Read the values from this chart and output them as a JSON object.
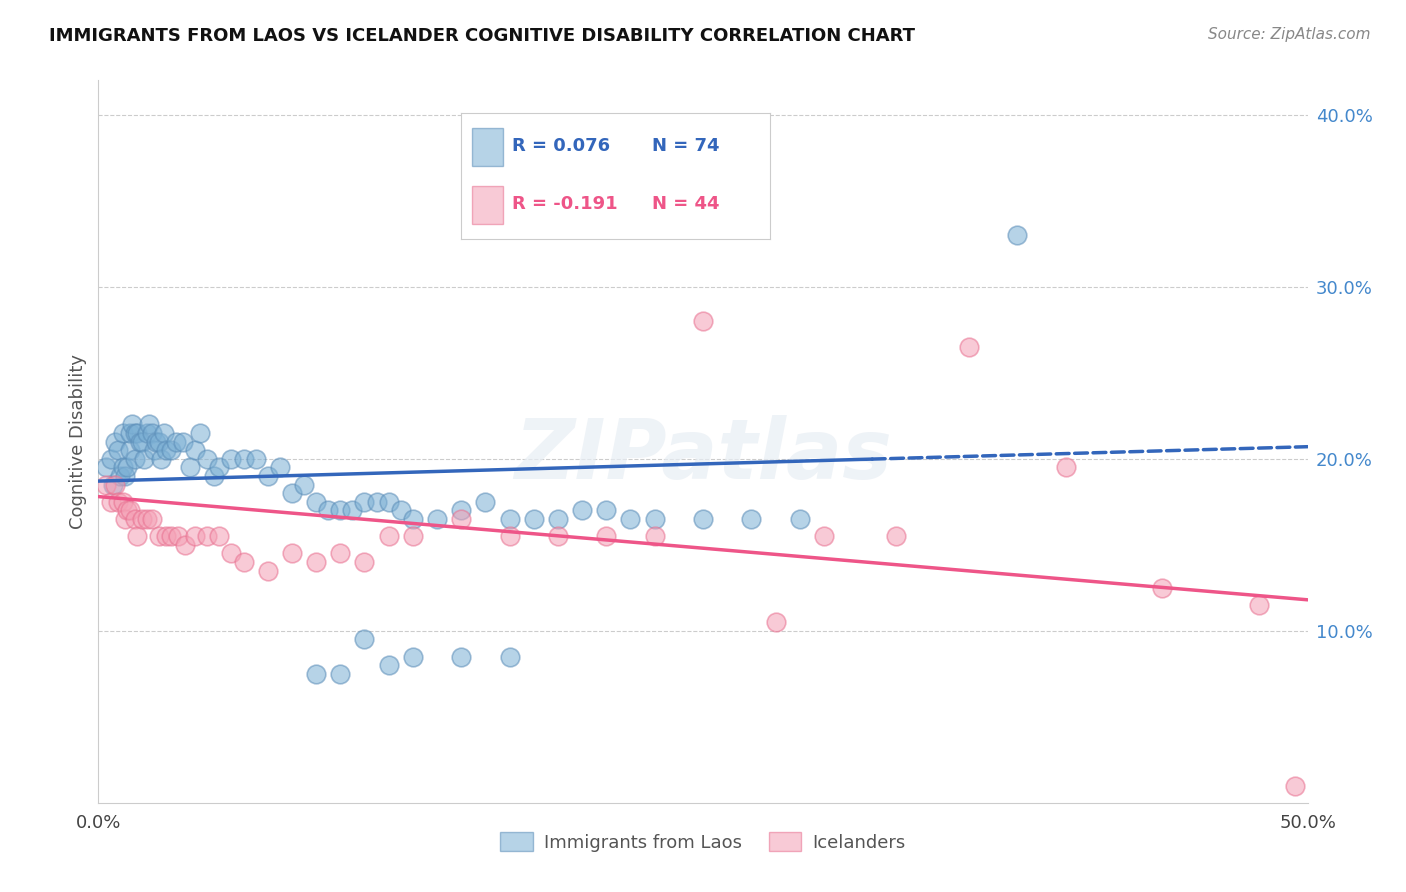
{
  "title": "IMMIGRANTS FROM LAOS VS ICELANDER COGNITIVE DISABILITY CORRELATION CHART",
  "source": "Source: ZipAtlas.com",
  "ylabel": "Cognitive Disability",
  "legend_blue_label": "Immigrants from Laos",
  "legend_pink_label": "Icelanders",
  "blue_color": "#7BAFD4",
  "pink_color": "#F4A0B5",
  "blue_scatter_edge": "#5B8DB8",
  "pink_scatter_edge": "#E87090",
  "blue_line_color": "#3366BB",
  "pink_line_color": "#EE5588",
  "watermark": "ZIPatlas",
  "xlim": [
    0.0,
    0.5
  ],
  "ylim": [
    0.0,
    0.42
  ],
  "blue_line_solid_end": 0.32,
  "blue_line_start_y": 0.187,
  "blue_line_end_y": 0.207,
  "pink_line_start_y": 0.178,
  "pink_line_end_y": 0.118,
  "blue_scatter_x": [
    0.003,
    0.005,
    0.006,
    0.007,
    0.008,
    0.009,
    0.01,
    0.01,
    0.011,
    0.012,
    0.013,
    0.013,
    0.014,
    0.015,
    0.015,
    0.016,
    0.017,
    0.018,
    0.019,
    0.02,
    0.021,
    0.022,
    0.023,
    0.024,
    0.025,
    0.026,
    0.027,
    0.028,
    0.03,
    0.032,
    0.035,
    0.038,
    0.04,
    0.042,
    0.045,
    0.048,
    0.05,
    0.055,
    0.06,
    0.065,
    0.07,
    0.075,
    0.08,
    0.085,
    0.09,
    0.095,
    0.1,
    0.105,
    0.11,
    0.115,
    0.12,
    0.125,
    0.13,
    0.14,
    0.15,
    0.16,
    0.17,
    0.18,
    0.19,
    0.2,
    0.21,
    0.22,
    0.23,
    0.25,
    0.27,
    0.29,
    0.11,
    0.13,
    0.15,
    0.17,
    0.09,
    0.38,
    0.12,
    0.1
  ],
  "blue_scatter_y": [
    0.195,
    0.2,
    0.185,
    0.21,
    0.205,
    0.19,
    0.195,
    0.215,
    0.19,
    0.195,
    0.205,
    0.215,
    0.22,
    0.2,
    0.215,
    0.215,
    0.21,
    0.21,
    0.2,
    0.215,
    0.22,
    0.215,
    0.205,
    0.21,
    0.21,
    0.2,
    0.215,
    0.205,
    0.205,
    0.21,
    0.21,
    0.195,
    0.205,
    0.215,
    0.2,
    0.19,
    0.195,
    0.2,
    0.2,
    0.2,
    0.19,
    0.195,
    0.18,
    0.185,
    0.175,
    0.17,
    0.17,
    0.17,
    0.175,
    0.175,
    0.175,
    0.17,
    0.165,
    0.165,
    0.17,
    0.175,
    0.165,
    0.165,
    0.165,
    0.17,
    0.17,
    0.165,
    0.165,
    0.165,
    0.165,
    0.165,
    0.095,
    0.085,
    0.085,
    0.085,
    0.075,
    0.33,
    0.08,
    0.075
  ],
  "pink_scatter_x": [
    0.003,
    0.005,
    0.007,
    0.008,
    0.01,
    0.011,
    0.012,
    0.013,
    0.015,
    0.016,
    0.018,
    0.02,
    0.022,
    0.025,
    0.028,
    0.03,
    0.033,
    0.036,
    0.04,
    0.045,
    0.05,
    0.055,
    0.06,
    0.07,
    0.08,
    0.09,
    0.1,
    0.11,
    0.12,
    0.13,
    0.15,
    0.17,
    0.19,
    0.21,
    0.23,
    0.25,
    0.28,
    0.3,
    0.33,
    0.36,
    0.4,
    0.44,
    0.48,
    0.495
  ],
  "pink_scatter_y": [
    0.185,
    0.175,
    0.185,
    0.175,
    0.175,
    0.165,
    0.17,
    0.17,
    0.165,
    0.155,
    0.165,
    0.165,
    0.165,
    0.155,
    0.155,
    0.155,
    0.155,
    0.15,
    0.155,
    0.155,
    0.155,
    0.145,
    0.14,
    0.135,
    0.145,
    0.14,
    0.145,
    0.14,
    0.155,
    0.155,
    0.165,
    0.155,
    0.155,
    0.155,
    0.155,
    0.28,
    0.105,
    0.155,
    0.155,
    0.265,
    0.195,
    0.125,
    0.115,
    0.01
  ]
}
